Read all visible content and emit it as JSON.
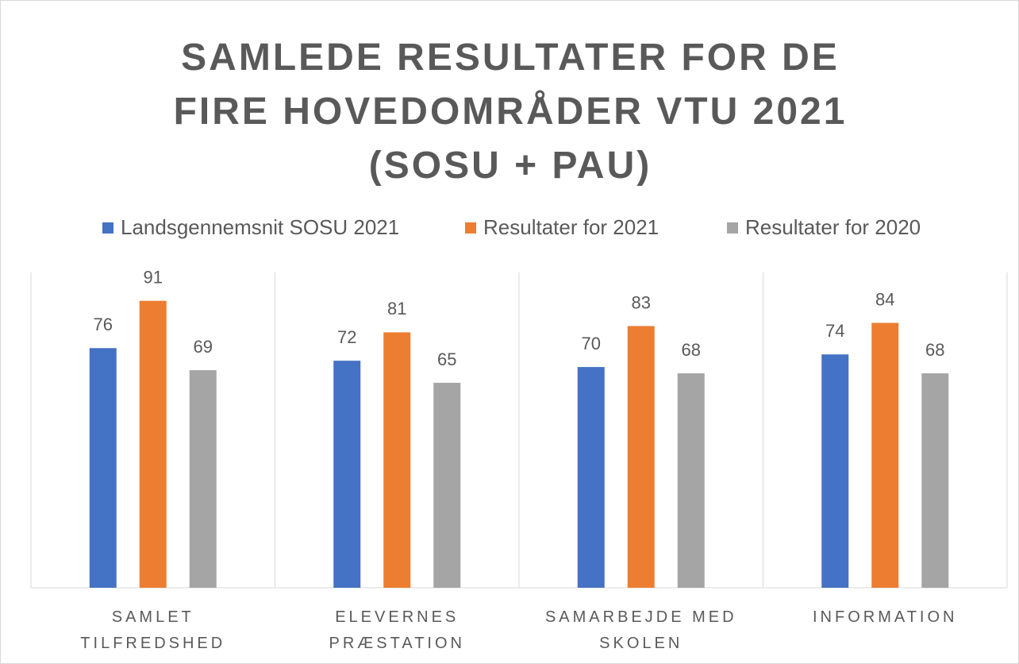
{
  "chart_data": {
    "type": "bar",
    "title": "SAMLEDE RESULTATER FOR DE FIRE HOVEDOMRÅDER VTU 2021 (SOSU + PAU)",
    "categories": [
      "SAMLET TILFREDSHED",
      "ELEVERNES PRÆSTATION",
      "SAMARBEJDE MED SKOLEN",
      "INFORMATION"
    ],
    "series": [
      {
        "name": "Landsgennemsnit SOSU 2021",
        "color": "#4472c4",
        "values": [
          76,
          72,
          70,
          74
        ]
      },
      {
        "name": "Resultater for 2021",
        "color": "#ed7d31",
        "values": [
          91,
          81,
          83,
          84
        ]
      },
      {
        "name": "Resultater for 2020",
        "color": "#a5a5a5",
        "values": [
          69,
          65,
          68,
          68
        ]
      }
    ],
    "ylim": [
      0,
      100
    ],
    "legend": "top"
  }
}
